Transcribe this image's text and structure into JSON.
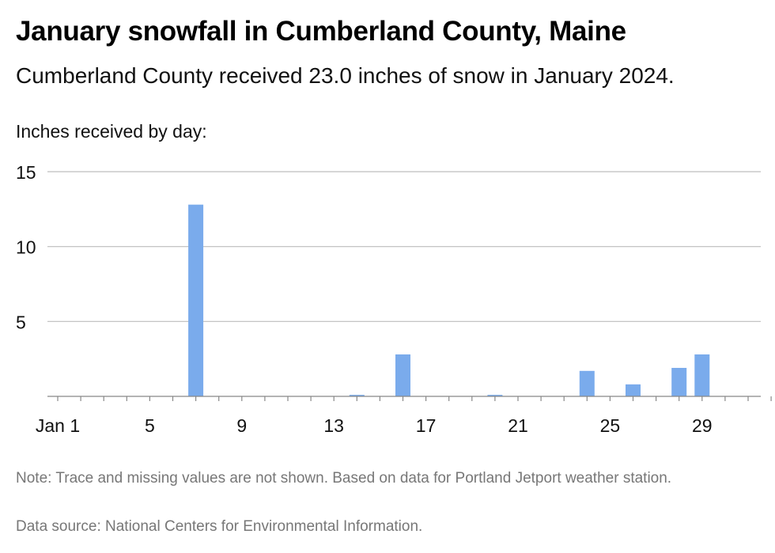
{
  "header": {
    "title": "January snowfall in Cumberland County, Maine",
    "subtitle": "Cumberland County received 23.0 inches of snow in January 2024."
  },
  "footer": {
    "note": "Note: Trace and missing values are not shown. Based on data for Portland Jetport weather station.",
    "source": "Data source: National Centers for Environmental Information."
  },
  "chart_data": {
    "type": "bar",
    "title": "January snowfall in Cumberland County, Maine",
    "ylabel": "Inches received by day:",
    "ylim": [
      0,
      15
    ],
    "yticks": [
      5,
      10,
      15
    ],
    "xlim": [
      1,
      32
    ],
    "xticks": [
      {
        "day": 1,
        "label": "Jan 1"
      },
      {
        "day": 5,
        "label": "5"
      },
      {
        "day": 9,
        "label": "9"
      },
      {
        "day": 13,
        "label": "13"
      },
      {
        "day": 17,
        "label": "17"
      },
      {
        "day": 21,
        "label": "21"
      },
      {
        "day": 25,
        "label": "25"
      },
      {
        "day": 29,
        "label": "29"
      }
    ],
    "bar_color": "#7aabec",
    "grid": true,
    "data": [
      {
        "day": 7,
        "value": 12.8
      },
      {
        "day": 14,
        "value": 0.1
      },
      {
        "day": 16,
        "value": 2.8
      },
      {
        "day": 20,
        "value": 0.1
      },
      {
        "day": 24,
        "value": 1.7
      },
      {
        "day": 26,
        "value": 0.8
      },
      {
        "day": 28,
        "value": 1.9
      },
      {
        "day": 29,
        "value": 2.8
      }
    ]
  }
}
